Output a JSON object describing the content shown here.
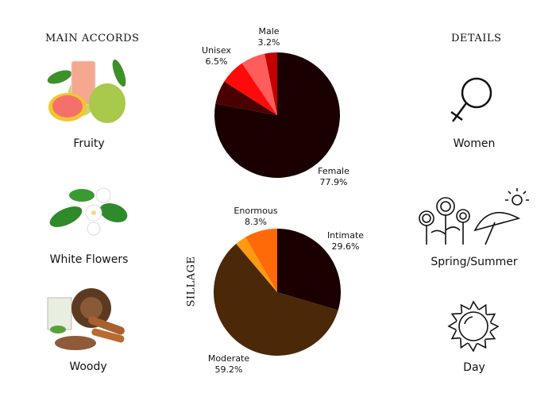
{
  "main_accords": {
    "heading": "MAIN ACCORDS",
    "items": [
      {
        "label": "Fruity",
        "icon": "guava-fruit-image"
      },
      {
        "label": "White Flowers",
        "icon": "jasmine-flowers-image"
      },
      {
        "label": "Woody",
        "icon": "wood-cinnamon-image"
      }
    ]
  },
  "details": {
    "heading": "DETAILS",
    "items": [
      {
        "label": "Women",
        "icon": "female-symbol-icon"
      },
      {
        "label": "Spring/Summer",
        "icon": "flowers-umbrella-sun-icon"
      },
      {
        "label": "Day",
        "icon": "sun-icon"
      }
    ]
  },
  "sillage_label": "SILLAGE",
  "chart_data": [
    {
      "type": "pie",
      "slices": [
        {
          "name": "Female",
          "value": 77.9,
          "pct": "77.9%",
          "color": "#1a0000"
        },
        {
          "name": "",
          "value": 6.1,
          "color": "#4a0000"
        },
        {
          "name": "Unisex",
          "value": 6.5,
          "pct": "6.5%",
          "color": "#ff0a0a"
        },
        {
          "name": "",
          "value": 6.3,
          "color": "#ff5c5c"
        },
        {
          "name": "Male",
          "value": 3.2,
          "pct": "3.2%",
          "color": "#c40000"
        }
      ]
    },
    {
      "type": "pie",
      "title": "SILLAGE",
      "slices": [
        {
          "name": "Intimate",
          "value": 29.6,
          "pct": "29.6%",
          "color": "#1a0000"
        },
        {
          "name": "Moderate",
          "value": 59.2,
          "pct": "59.2%",
          "color": "#4a2808"
        },
        {
          "name": "",
          "value": 2.9,
          "color": "#ff9a10"
        },
        {
          "name": "Enormous",
          "value": 8.3,
          "pct": "8.3%",
          "color": "#ff6a08"
        }
      ]
    }
  ]
}
